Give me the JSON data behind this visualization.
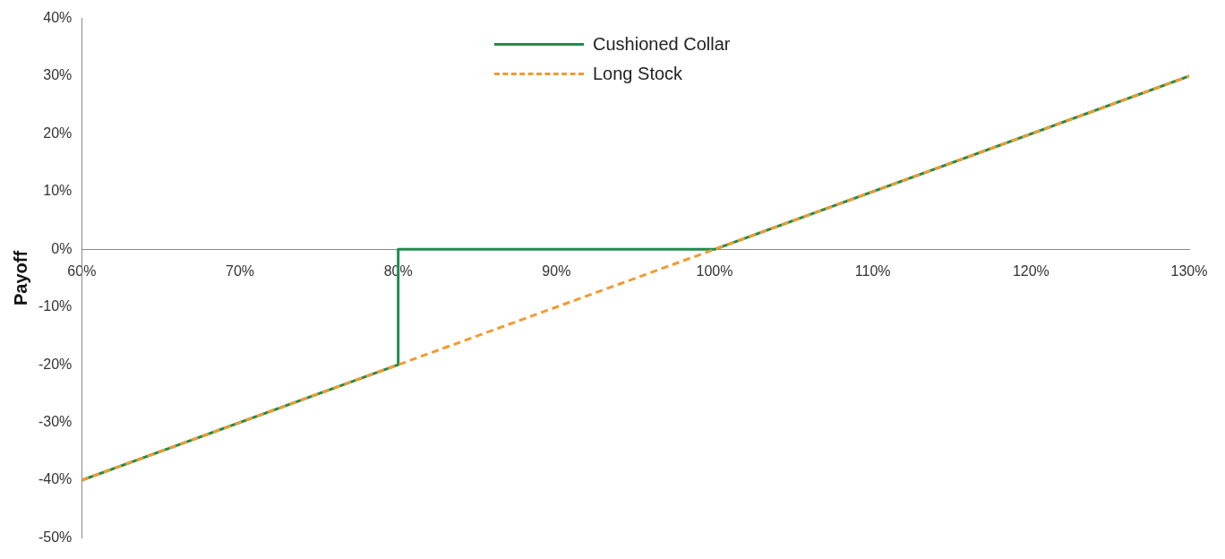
{
  "chart_data": {
    "type": "line",
    "ylabel": "Payoff",
    "series": [
      {
        "name": "Cushioned Collar",
        "color": "#1e8c4e",
        "x": [
          60,
          80,
          80,
          100,
          130
        ],
        "values": [
          -40,
          -20,
          0,
          0,
          30
        ],
        "line_style": "solid"
      },
      {
        "name": "Long Stock",
        "color": "#f59a2c",
        "x": [
          60,
          130
        ],
        "values": [
          -40,
          30
        ],
        "line_style": "dashed"
      }
    ],
    "xlim": [
      60,
      130
    ],
    "xticks": [
      {
        "value": 60,
        "label": "60%"
      },
      {
        "value": 70,
        "label": "70%"
      },
      {
        "value": 80,
        "label": "80%"
      },
      {
        "value": 90,
        "label": "90%"
      },
      {
        "value": 100,
        "label": "100%"
      },
      {
        "value": 110,
        "label": "110%"
      },
      {
        "value": 120,
        "label": "120%"
      },
      {
        "value": 130,
        "label": "130%"
      }
    ],
    "ylim": [
      -50,
      40
    ],
    "yticks": [
      {
        "value": -50,
        "label": "-50%"
      },
      {
        "value": -40,
        "label": "-40%"
      },
      {
        "value": -30,
        "label": "-30%"
      },
      {
        "value": -20,
        "label": "-20%"
      },
      {
        "value": -10,
        "label": "-10%"
      },
      {
        "value": 0,
        "label": "0%"
      },
      {
        "value": 10,
        "label": "10%"
      },
      {
        "value": 20,
        "label": "20%"
      },
      {
        "value": 30,
        "label": "30%"
      },
      {
        "value": 40,
        "label": "40%"
      }
    ],
    "grid": false,
    "legend": "top",
    "marker": "none"
  }
}
